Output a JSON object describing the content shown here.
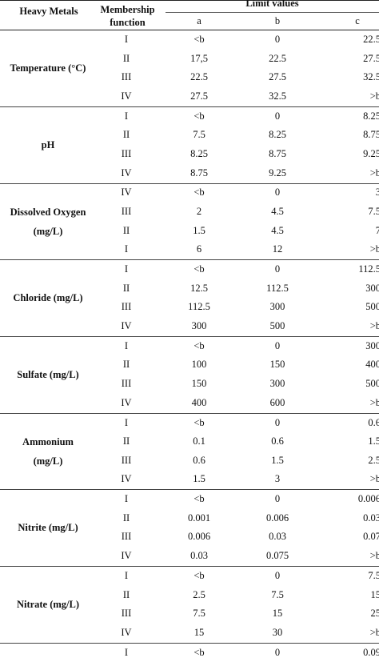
{
  "header": {
    "col1": "Heavy Metals",
    "col2_line1": "Membership",
    "col2_line2": "function",
    "limit": "Limit values",
    "a": "a",
    "b": "b",
    "c": "c"
  },
  "groups": [
    {
      "label": [
        "Temperature  (°C)"
      ],
      "rows": [
        {
          "mf": "I",
          "a": "<b",
          "b": "0",
          "c": "22.5"
        },
        {
          "mf": "II",
          "a": "17,5",
          "b": "22.5",
          "c": "27.5"
        },
        {
          "mf": "III",
          "a": "22.5",
          "b": "27.5",
          "c": "32.5"
        },
        {
          "mf": "IV",
          "a": "27.5",
          "b": "32.5",
          "c": ">b"
        }
      ]
    },
    {
      "label": [
        "pH"
      ],
      "rows": [
        {
          "mf": "I",
          "a": "<b",
          "b": "0",
          "c": "8.25"
        },
        {
          "mf": "II",
          "a": "7.5",
          "b": "8.25",
          "c": "8.75"
        },
        {
          "mf": "III",
          "a": "8.25",
          "b": "8.75",
          "c": "9.25"
        },
        {
          "mf": "IV",
          "a": "8.75",
          "b": "9.25",
          "c": ">b"
        }
      ]
    },
    {
      "label": [
        "Dissolved Oxygen",
        "(mg/L)"
      ],
      "rows": [
        {
          "mf": "IV",
          "a": "<b",
          "b": "0",
          "c": "3"
        },
        {
          "mf": "III",
          "a": "2",
          "b": "4.5",
          "c": "7.5"
        },
        {
          "mf": "II",
          "a": "1.5",
          "b": "4.5",
          "c": "7"
        },
        {
          "mf": "I",
          "a": "6",
          "b": "12",
          "c": ">b"
        }
      ]
    },
    {
      "label": [
        "Chloride (mg/L)"
      ],
      "rows": [
        {
          "mf": "I",
          "a": "<b",
          "b": "0",
          "c": "112.5"
        },
        {
          "mf": "II",
          "a": "12.5",
          "b": "112.5",
          "c": "300"
        },
        {
          "mf": "III",
          "a": "112.5",
          "b": "300",
          "c": "500"
        },
        {
          "mf": "IV",
          "a": "300",
          "b": "500",
          "c": ">b"
        }
      ]
    },
    {
      "label": [
        "Sulfate (mg/L)"
      ],
      "rows": [
        {
          "mf": "I",
          "a": "<b",
          "b": "0",
          "c": "300"
        },
        {
          "mf": "II",
          "a": "100",
          "b": "150",
          "c": "400"
        },
        {
          "mf": "III",
          "a": "150",
          "b": "300",
          "c": "500"
        },
        {
          "mf": "IV",
          "a": "400",
          "b": "600",
          "c": ">b"
        }
      ]
    },
    {
      "label": [
        "Ammonium",
        "(mg/L)"
      ],
      "rows": [
        {
          "mf": "I",
          "a": "<b",
          "b": "0",
          "c": "0.6"
        },
        {
          "mf": "II",
          "a": "0.1",
          "b": "0.6",
          "c": "1.5"
        },
        {
          "mf": "III",
          "a": "0.6",
          "b": "1.5",
          "c": "2.5"
        },
        {
          "mf": "IV",
          "a": "1.5",
          "b": "3",
          "c": ">b"
        }
      ]
    },
    {
      "label": [
        "Nitrite (mg/L)"
      ],
      "rows": [
        {
          "mf": "I",
          "a": "<b",
          "b": "0",
          "c": "0.006"
        },
        {
          "mf": "II",
          "a": "0.001",
          "b": "0.006",
          "c": "0.03"
        },
        {
          "mf": "III",
          "a": "0.006",
          "b": "0.03",
          "c": "0.07"
        },
        {
          "mf": "IV",
          "a": "0.03",
          "b": "0.075",
          "c": ">b"
        }
      ]
    },
    {
      "label": [
        "Nitrate (mg/L)"
      ],
      "rows": [
        {
          "mf": "I",
          "a": "<b",
          "b": "0",
          "c": "7.5"
        },
        {
          "mf": "II",
          "a": "2.5",
          "b": "7.5",
          "c": "15"
        },
        {
          "mf": "III",
          "a": "7.5",
          "b": "15",
          "c": "25"
        },
        {
          "mf": "IV",
          "a": "15",
          "b": "30",
          "c": ">b"
        }
      ]
    },
    {
      "label": [],
      "rows": [
        {
          "mf": "I",
          "a": "<b",
          "b": "0",
          "c": "0.09"
        }
      ]
    }
  ]
}
